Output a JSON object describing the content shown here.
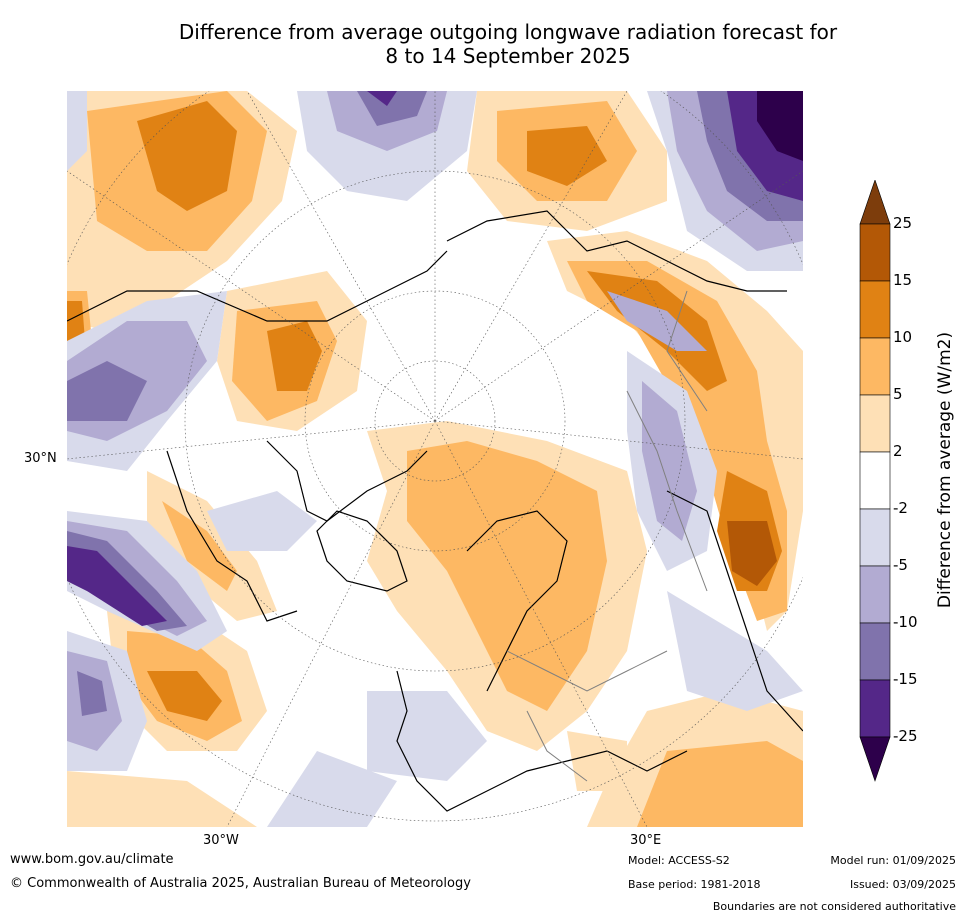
{
  "title": {
    "line1": "Difference from average outgoing longwave radiation forecast for",
    "line2": "8 to 14 September 2025"
  },
  "map": {
    "projection": "north-polar-stereographic",
    "axis_labels": {
      "lat_30n": "30°N",
      "lon_30w": "30°W",
      "lon_30e": "30°E"
    }
  },
  "colorbar": {
    "label": "Difference from average (W/m2)",
    "ticks": [
      "25",
      "15",
      "10",
      "5",
      "2",
      "-2",
      "-5",
      "-10",
      "-15",
      "-25"
    ],
    "colors": [
      "#7d3d0c",
      "#b35806",
      "#e08214",
      "#fdb863",
      "#fee0b6",
      "#ffffff",
      "#d8daeb",
      "#b2abd2",
      "#8073ac",
      "#542788",
      "#2d004b"
    ]
  },
  "footer": {
    "website": "www.bom.gov.au/climate",
    "copyright": "© Commonwealth of Australia 2025, Australian Bureau of Meteorology",
    "model": "Model: ACCESS-S2",
    "base_period": "Base period: 1981-2018",
    "model_run": "Model run: 01/09/2025",
    "issued": "Issued: 03/09/2025",
    "disclaimer": "Boundaries are not considered authoritative"
  }
}
